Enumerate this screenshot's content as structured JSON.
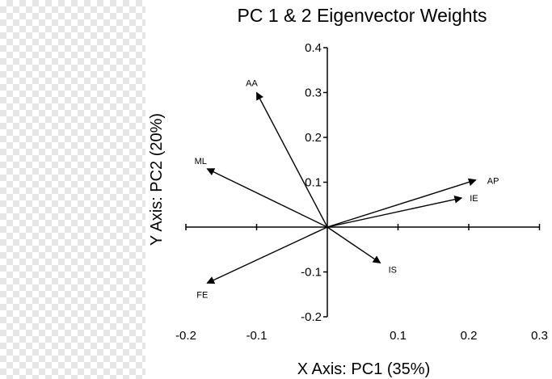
{
  "chart_data": {
    "type": "biplot",
    "title": "PC 1 & 2 Eigenvector Weights",
    "xlabel": "X Axis: PC1 (35%)",
    "ylabel": "Y Axis: PC2 (20%)",
    "xlim": [
      -0.2,
      0.3
    ],
    "ylim": [
      -0.2,
      0.4
    ],
    "x_ticks": [
      -0.2,
      -0.1,
      0.1,
      0.2,
      0.3
    ],
    "x_tick_labels": [
      "-0.2",
      "-0.1",
      "0.1",
      "0.2",
      "0.3"
    ],
    "y_ticks": [
      0.4,
      0.3,
      0.2,
      0.1,
      -0.1,
      -0.2
    ],
    "y_tick_labels": [
      "0.4",
      "0.3",
      "0.2",
      "0.1",
      "-0.1",
      "-0.2"
    ],
    "grid": false,
    "vectors": [
      {
        "label": "AA",
        "x": -0.1,
        "y": 0.3
      },
      {
        "label": "ML",
        "x": -0.17,
        "y": 0.13
      },
      {
        "label": "AP",
        "x": 0.21,
        "y": 0.105
      },
      {
        "label": "IE",
        "x": 0.19,
        "y": 0.065
      },
      {
        "label": "IS",
        "x": 0.075,
        "y": -0.08
      },
      {
        "label": "FE",
        "x": -0.17,
        "y": -0.125
      }
    ]
  }
}
